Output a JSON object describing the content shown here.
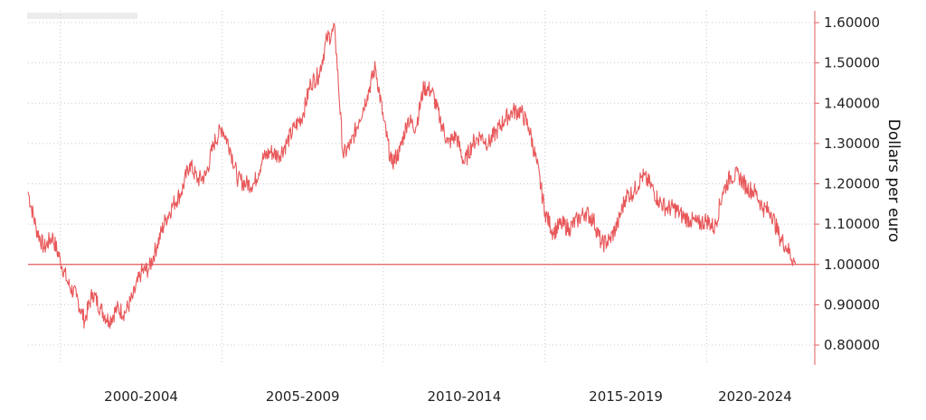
{
  "chart_data": {
    "type": "line",
    "ylabel": "Dollars per euro",
    "ylim": [
      0.75,
      1.62
    ],
    "yticks": [
      1.6,
      1.5,
      1.4,
      1.3,
      1.2,
      1.1,
      1.0,
      0.9,
      0.8
    ],
    "ytick_labels": [
      "1.60000",
      "1.50000",
      "1.40000",
      "1.30000",
      "1.20000",
      "1.10000",
      "1.00000",
      "0.90000",
      "0.80000"
    ],
    "xlim": [
      1999.0,
      2022.9
    ],
    "xgrid": [
      2000,
      2005,
      2010,
      2015,
      2020
    ],
    "xtick_labels": [
      "2000-2004",
      "2005-2009",
      "2010-2014",
      "2015-2019",
      "2020-2024"
    ],
    "xtick_positions": [
      2002.5,
      2007.5,
      2012.5,
      2017.5,
      2021.5
    ],
    "reference_line": 1.0,
    "grid": true,
    "axis_side": "right",
    "series": [
      {
        "color": "#e8585a",
        "x": [
          1999.0,
          1999.25,
          1999.5,
          1999.75,
          2000.0,
          2000.25,
          2000.5,
          2000.75,
          2001.0,
          2001.25,
          2001.5,
          2001.75,
          2002.0,
          2002.25,
          2002.5,
          2002.75,
          2003.0,
          2003.25,
          2003.5,
          2003.75,
          2004.0,
          2004.25,
          2004.5,
          2004.75,
          2005.0,
          2005.25,
          2005.5,
          2005.75,
          2006.0,
          2006.25,
          2006.5,
          2006.75,
          2007.0,
          2007.25,
          2007.5,
          2007.75,
          2008.0,
          2008.25,
          2008.5,
          2008.75,
          2009.0,
          2009.25,
          2009.5,
          2009.75,
          2010.0,
          2010.25,
          2010.5,
          2010.75,
          2011.0,
          2011.25,
          2011.5,
          2011.75,
          2012.0,
          2012.25,
          2012.5,
          2012.75,
          2013.0,
          2013.25,
          2013.5,
          2013.75,
          2014.0,
          2014.25,
          2014.5,
          2014.75,
          2015.0,
          2015.25,
          2015.5,
          2015.75,
          2016.0,
          2016.25,
          2016.5,
          2016.75,
          2017.0,
          2017.25,
          2017.5,
          2017.75,
          2018.0,
          2018.25,
          2018.5,
          2018.75,
          2019.0,
          2019.25,
          2019.5,
          2019.75,
          2020.0,
          2020.25,
          2020.5,
          2020.75,
          2021.0,
          2021.25,
          2021.5,
          2021.75,
          2022.0,
          2022.25,
          2022.5,
          2022.75
        ],
        "y": [
          1.18,
          1.09,
          1.04,
          1.07,
          1.01,
          0.95,
          0.92,
          0.86,
          0.93,
          0.89,
          0.86,
          0.89,
          0.88,
          0.92,
          0.98,
          0.99,
          1.05,
          1.11,
          1.15,
          1.18,
          1.25,
          1.21,
          1.22,
          1.3,
          1.34,
          1.29,
          1.21,
          1.2,
          1.2,
          1.26,
          1.28,
          1.27,
          1.3,
          1.34,
          1.37,
          1.45,
          1.47,
          1.56,
          1.58,
          1.27,
          1.3,
          1.36,
          1.42,
          1.49,
          1.36,
          1.25,
          1.28,
          1.36,
          1.34,
          1.44,
          1.43,
          1.36,
          1.3,
          1.32,
          1.25,
          1.3,
          1.32,
          1.3,
          1.33,
          1.36,
          1.38,
          1.38,
          1.34,
          1.25,
          1.13,
          1.08,
          1.1,
          1.09,
          1.11,
          1.13,
          1.11,
          1.05,
          1.06,
          1.1,
          1.17,
          1.18,
          1.22,
          1.2,
          1.16,
          1.14,
          1.14,
          1.12,
          1.11,
          1.1,
          1.11,
          1.09,
          1.18,
          1.22,
          1.22,
          1.19,
          1.18,
          1.14,
          1.13,
          1.07,
          1.04,
          1.0
        ]
      }
    ]
  }
}
